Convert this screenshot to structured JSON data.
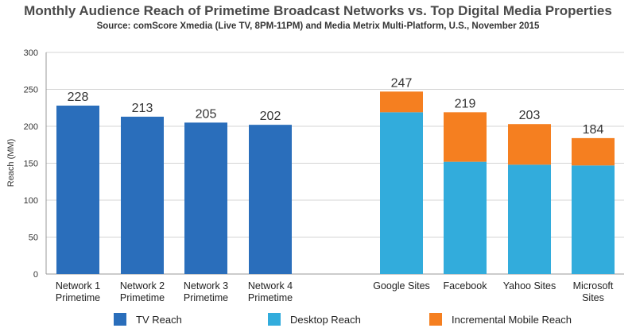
{
  "chart_data": {
    "type": "bar",
    "title": "Monthly Audience Reach of Primetime Broadcast Networks vs. Top Digital Media Properties",
    "subtitle": "Source: comScore Xmedia (Live TV, 8PM-11PM) and Media Metrix Multi-Platform, U.S., November 2015",
    "ylabel": "Reach (MM)",
    "ylim": [
      0,
      300
    ],
    "yticks": [
      0,
      50,
      100,
      150,
      200,
      250,
      300
    ],
    "grid": true,
    "legend_position": "bottom",
    "colors": {
      "tv": "#2a6ebb",
      "desktop": "#32acdc",
      "mobile": "#f57f20"
    },
    "series": [
      {
        "name": "TV Reach",
        "values": [
          228,
          213,
          205,
          202,
          null,
          null,
          null,
          null
        ]
      },
      {
        "name": "Desktop Reach",
        "values": [
          null,
          null,
          null,
          null,
          219,
          152,
          148,
          147
        ]
      },
      {
        "name": "Incremental Mobile Reach",
        "values": [
          null,
          null,
          null,
          null,
          28,
          67,
          55,
          37
        ]
      }
    ],
    "categories": [
      [
        "Network 1",
        "Primetime"
      ],
      [
        "Network 2",
        "Primetime"
      ],
      [
        "Network 3",
        "Primetime"
      ],
      [
        "Network 4",
        "Primetime"
      ],
      [
        "Google Sites"
      ],
      [
        "Facebook"
      ],
      [
        "Yahoo Sites"
      ],
      [
        "Microsoft",
        "Sites"
      ]
    ],
    "totals": [
      "228",
      "213",
      "205",
      "202",
      "247",
      "219",
      "203",
      "184"
    ]
  }
}
